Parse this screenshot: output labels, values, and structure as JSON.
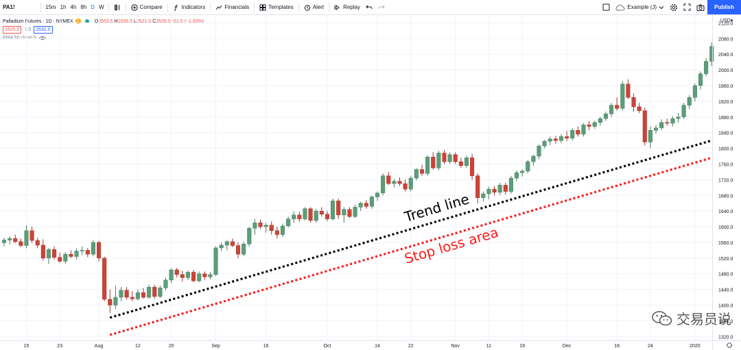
{
  "toolbar": {
    "symbol": "PA1!",
    "intervals": [
      "15m",
      "1h",
      "4h",
      "8h",
      "D",
      "W"
    ],
    "active_interval": "D",
    "compare": "Compare",
    "indicators": "Indicators",
    "financials": "Financials",
    "templates": "Templates",
    "alert": "Alert",
    "replay": "Replay",
    "layout_name": "Example (J)",
    "publish": "Publish"
  },
  "legend": {
    "title": "Palladium Futures · 1D · NYMEX",
    "d_badge": "D",
    "ohlc": {
      "o_label": "O",
      "o": "2653.5",
      "h_label": "H",
      "h": "2656.5",
      "l_label": "L",
      "l": "2621.0",
      "c_label": "C",
      "c": "2626.5",
      "change": "-51.5 (−1.93%)"
    },
    "bid": "2625.0",
    "spread": "7.0",
    "ask": "2632.0",
    "ema": "EMA 50 close 0"
  },
  "watermark": "交易员说",
  "colors": {
    "up": "#5b9e7a",
    "down": "#cc4437",
    "trend": "#000000",
    "stop": "#ff1a1a",
    "accent": "#2962ff"
  },
  "chart_data": {
    "type": "candlestick",
    "title": "Palladium Futures · 1D · NYMEX",
    "ylim": [
      1310,
      2140
    ],
    "yticks": [
      1320,
      1360,
      1400,
      1440,
      1480,
      1520,
      1560,
      1600,
      1640,
      1680,
      1720,
      1760,
      1800,
      1840,
      1880,
      1920,
      1960,
      2000,
      2040,
      2080,
      2120
    ],
    "ycurrency": "USD",
    "xticks": [
      {
        "label": "15",
        "i": 4
      },
      {
        "label": "23",
        "i": 10
      },
      {
        "label": "Aug",
        "i": 17
      },
      {
        "label": "12",
        "i": 24
      },
      {
        "label": "20",
        "i": 30
      },
      {
        "label": "Sep",
        "i": 38
      },
      {
        "label": "16",
        "i": 47
      },
      {
        "label": "Oct",
        "i": 58
      },
      {
        "label": "14",
        "i": 67
      },
      {
        "label": "22",
        "i": 73
      },
      {
        "label": "Nov",
        "i": 81
      },
      {
        "label": "11",
        "i": 87
      },
      {
        "label": "19",
        "i": 93
      },
      {
        "label": "Dec",
        "i": 101
      },
      {
        "label": "16",
        "i": 110
      },
      {
        "label": "24",
        "i": 116
      },
      {
        "label": "2020",
        "i": 124
      }
    ],
    "candles": [
      [
        1559,
        1572,
        1550,
        1566
      ],
      [
        1566,
        1576,
        1555,
        1570
      ],
      [
        1570,
        1580,
        1558,
        1562
      ],
      [
        1562,
        1570,
        1548,
        1552
      ],
      [
        1552,
        1604,
        1545,
        1590
      ],
      [
        1590,
        1600,
        1558,
        1565
      ],
      [
        1565,
        1572,
        1545,
        1553
      ],
      [
        1553,
        1568,
        1514,
        1520
      ],
      [
        1520,
        1546,
        1505,
        1542
      ],
      [
        1542,
        1550,
        1516,
        1522
      ],
      [
        1522,
        1534,
        1508,
        1512
      ],
      [
        1512,
        1535,
        1505,
        1530
      ],
      [
        1530,
        1540,
        1520,
        1524
      ],
      [
        1524,
        1545,
        1516,
        1538
      ],
      [
        1538,
        1550,
        1528,
        1540
      ],
      [
        1540,
        1546,
        1522,
        1530
      ],
      [
        1530,
        1566,
        1525,
        1560
      ],
      [
        1560,
        1564,
        1512,
        1520
      ],
      [
        1520,
        1524,
        1410,
        1415
      ],
      [
        1415,
        1440,
        1380,
        1400
      ],
      [
        1400,
        1450,
        1390,
        1420
      ],
      [
        1420,
        1446,
        1410,
        1438
      ],
      [
        1438,
        1446,
        1414,
        1420
      ],
      [
        1420,
        1436,
        1410,
        1416
      ],
      [
        1416,
        1440,
        1412,
        1432
      ],
      [
        1432,
        1444,
        1416,
        1420
      ],
      [
        1420,
        1452,
        1416,
        1446
      ],
      [
        1446,
        1452,
        1416,
        1422
      ],
      [
        1422,
        1450,
        1418,
        1444
      ],
      [
        1444,
        1470,
        1438,
        1464
      ],
      [
        1464,
        1494,
        1456,
        1490
      ],
      [
        1490,
        1495,
        1470,
        1478
      ],
      [
        1478,
        1488,
        1460,
        1470
      ],
      [
        1470,
        1488,
        1464,
        1484
      ],
      [
        1484,
        1490,
        1458,
        1462
      ],
      [
        1462,
        1486,
        1458,
        1480
      ],
      [
        1480,
        1486,
        1464,
        1472
      ],
      [
        1472,
        1484,
        1466,
        1478
      ],
      [
        1478,
        1550,
        1474,
        1546
      ],
      [
        1546,
        1560,
        1538,
        1553
      ],
      [
        1553,
        1566,
        1540,
        1562
      ],
      [
        1562,
        1570,
        1548,
        1552
      ],
      [
        1552,
        1560,
        1520,
        1530
      ],
      [
        1530,
        1562,
        1525,
        1556
      ],
      [
        1556,
        1600,
        1550,
        1596
      ],
      [
        1596,
        1620,
        1580,
        1610
      ],
      [
        1610,
        1618,
        1594,
        1600
      ],
      [
        1600,
        1610,
        1585,
        1604
      ],
      [
        1604,
        1614,
        1580,
        1590
      ],
      [
        1590,
        1600,
        1570,
        1580
      ],
      [
        1580,
        1608,
        1574,
        1602
      ],
      [
        1602,
        1626,
        1598,
        1620
      ],
      [
        1620,
        1640,
        1610,
        1630
      ],
      [
        1630,
        1638,
        1612,
        1620
      ],
      [
        1620,
        1650,
        1616,
        1646
      ],
      [
        1646,
        1650,
        1610,
        1616
      ],
      [
        1616,
        1646,
        1610,
        1640
      ],
      [
        1640,
        1650,
        1626,
        1632
      ],
      [
        1632,
        1640,
        1614,
        1620
      ],
      [
        1620,
        1672,
        1616,
        1666
      ],
      [
        1666,
        1672,
        1620,
        1630
      ],
      [
        1630,
        1650,
        1610,
        1644
      ],
      [
        1644,
        1650,
        1622,
        1626
      ],
      [
        1626,
        1656,
        1622,
        1650
      ],
      [
        1650,
        1664,
        1640,
        1660
      ],
      [
        1660,
        1668,
        1646,
        1652
      ],
      [
        1652,
        1680,
        1646,
        1676
      ],
      [
        1676,
        1690,
        1666,
        1686
      ],
      [
        1686,
        1736,
        1680,
        1730
      ],
      [
        1730,
        1740,
        1706,
        1710
      ],
      [
        1710,
        1722,
        1700,
        1716
      ],
      [
        1716,
        1726,
        1704,
        1710
      ],
      [
        1710,
        1720,
        1690,
        1696
      ],
      [
        1696,
        1730,
        1690,
        1724
      ],
      [
        1724,
        1750,
        1718,
        1746
      ],
      [
        1746,
        1758,
        1730,
        1736
      ],
      [
        1736,
        1782,
        1730,
        1778
      ],
      [
        1778,
        1790,
        1746,
        1750
      ],
      [
        1750,
        1794,
        1744,
        1788
      ],
      [
        1788,
        1796,
        1760,
        1766
      ],
      [
        1766,
        1790,
        1760,
        1784
      ],
      [
        1784,
        1790,
        1760,
        1766
      ],
      [
        1766,
        1776,
        1750,
        1756
      ],
      [
        1756,
        1782,
        1750,
        1776
      ],
      [
        1776,
        1786,
        1720,
        1730
      ],
      [
        1730,
        1736,
        1660,
        1674
      ],
      [
        1674,
        1690,
        1664,
        1684
      ],
      [
        1684,
        1702,
        1670,
        1696
      ],
      [
        1696,
        1704,
        1680,
        1688
      ],
      [
        1688,
        1712,
        1680,
        1706
      ],
      [
        1706,
        1712,
        1682,
        1690
      ],
      [
        1690,
        1730,
        1684,
        1724
      ],
      [
        1724,
        1744,
        1716,
        1738
      ],
      [
        1738,
        1746,
        1728,
        1742
      ],
      [
        1742,
        1770,
        1736,
        1766
      ],
      [
        1766,
        1784,
        1756,
        1780
      ],
      [
        1780,
        1810,
        1772,
        1806
      ],
      [
        1806,
        1822,
        1800,
        1818
      ],
      [
        1818,
        1830,
        1808,
        1824
      ],
      [
        1824,
        1832,
        1812,
        1820
      ],
      [
        1820,
        1836,
        1814,
        1830
      ],
      [
        1830,
        1844,
        1818,
        1826
      ],
      [
        1826,
        1852,
        1820,
        1846
      ],
      [
        1846,
        1856,
        1830,
        1836
      ],
      [
        1836,
        1864,
        1830,
        1860
      ],
      [
        1860,
        1870,
        1846,
        1856
      ],
      [
        1856,
        1870,
        1850,
        1866
      ],
      [
        1866,
        1880,
        1858,
        1876
      ],
      [
        1876,
        1894,
        1870,
        1888
      ],
      [
        1888,
        1916,
        1880,
        1910
      ],
      [
        1910,
        1930,
        1896,
        1902
      ],
      [
        1902,
        1972,
        1896,
        1964
      ],
      [
        1964,
        1976,
        1926,
        1930
      ],
      [
        1930,
        1940,
        1894,
        1906
      ],
      [
        1906,
        1916,
        1890,
        1896
      ],
      [
        1896,
        1904,
        1808,
        1816
      ],
      [
        1816,
        1856,
        1800,
        1846
      ],
      [
        1846,
        1860,
        1838,
        1852
      ],
      [
        1852,
        1874,
        1846,
        1866
      ],
      [
        1866,
        1876,
        1858,
        1864
      ],
      [
        1864,
        1882,
        1856,
        1876
      ],
      [
        1876,
        1890,
        1866,
        1880
      ],
      [
        1880,
        1916,
        1874,
        1910
      ],
      [
        1910,
        1936,
        1900,
        1930
      ],
      [
        1930,
        1966,
        1920,
        1960
      ],
      [
        1960,
        1996,
        1950,
        1990
      ],
      [
        1990,
        2030,
        1984,
        2022
      ],
      [
        2022,
        2070,
        2010,
        2060
      ]
    ],
    "trend_line": {
      "label": "Trend line",
      "from": {
        "i": 19,
        "y": 1368
      },
      "to": {
        "i": 127,
        "y": 1820
      }
    },
    "stop_line": {
      "label": "Stop loss area",
      "from": {
        "i": 19,
        "y": 1324
      },
      "to": {
        "i": 127,
        "y": 1776
      }
    }
  }
}
